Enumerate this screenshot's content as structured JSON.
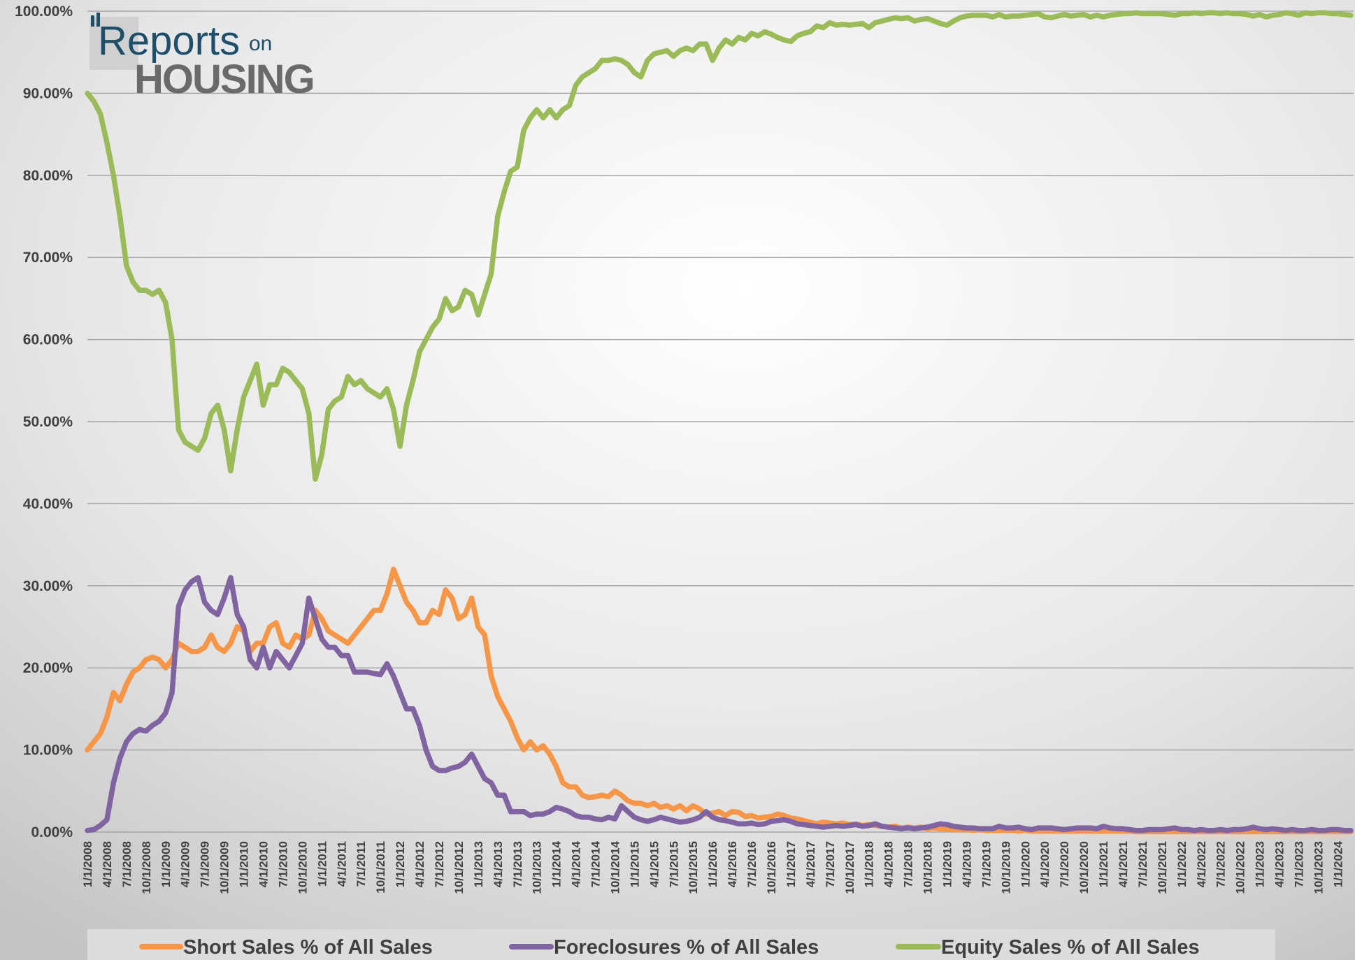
{
  "logo": {
    "word": "Reports",
    "small": "on",
    "big": "HOUSING"
  },
  "chart_data": {
    "type": "line",
    "categories": [
      "1/1/2008",
      null,
      null,
      "4/1/2008",
      null,
      null,
      "7/1/2008",
      null,
      null,
      "10/1/2008",
      null,
      null,
      "1/1/2009",
      null,
      null,
      "4/1/2009",
      null,
      null,
      "7/1/2009",
      null,
      null,
      "10/1/2009",
      null,
      null,
      "1/1/2010",
      null,
      null,
      "4/1/2010",
      null,
      null,
      "7/1/2010",
      null,
      null,
      "10/1/2010",
      null,
      null,
      "1/1/2011",
      null,
      null,
      "4/1/2011",
      null,
      null,
      "7/1/2011",
      null,
      null,
      "10/1/2011",
      null,
      null,
      "1/1/2012",
      null,
      null,
      "4/1/2012",
      null,
      null,
      "7/1/2012",
      null,
      null,
      "10/1/2012",
      null,
      null,
      "1/1/2013",
      null,
      null,
      "4/1/2013",
      null,
      null,
      "7/1/2013",
      null,
      null,
      "10/1/2013",
      null,
      null,
      "1/1/2014",
      null,
      null,
      "4/1/2014",
      null,
      null,
      "7/1/2014",
      null,
      null,
      "10/1/2014",
      null,
      null,
      "1/1/2015",
      null,
      null,
      "4/1/2015",
      null,
      null,
      "7/1/2015",
      null,
      null,
      "10/1/2015",
      null,
      null,
      "1/1/2016",
      null,
      null,
      "4/1/2016",
      null,
      null,
      "7/1/2016",
      null,
      null,
      "10/1/2016",
      null,
      null,
      "1/1/2017",
      null,
      null,
      "4/1/2017",
      null,
      null,
      "7/1/2017",
      null,
      null,
      "10/1/2017",
      null,
      null,
      "1/1/2018",
      null,
      null,
      "4/1/2018",
      null,
      null,
      "7/1/2018",
      null,
      null,
      "10/1/2018",
      null,
      null,
      "1/1/2019",
      null,
      null,
      "4/1/2019",
      null,
      null,
      "7/1/2019",
      null,
      null,
      "10/1/2019",
      null,
      null,
      "1/1/2020",
      null,
      null,
      "4/1/2020",
      null,
      null,
      "7/1/2020",
      null,
      null,
      "10/1/2020",
      null,
      null,
      "1/1/2021",
      null,
      null,
      "4/1/2021",
      null,
      null,
      "7/1/2021",
      null,
      null,
      "10/1/2021",
      null,
      null,
      "1/1/2022",
      null,
      null,
      "4/1/2022",
      null,
      null,
      "7/1/2022",
      null,
      null,
      "10/1/2022",
      null,
      null,
      "1/1/2023",
      null,
      null,
      "4/1/2023",
      null,
      null,
      "7/1/2023",
      null,
      null,
      "10/1/2023",
      null,
      null,
      "1/1/2024",
      null,
      null
    ],
    "series": [
      {
        "name": "Short Sales % of All Sales",
        "color": "#f79646",
        "values": [
          10,
          11,
          12,
          14,
          17,
          16,
          18,
          19.5,
          20,
          21,
          21.3,
          21,
          20,
          21,
          23,
          22.5,
          22,
          22,
          22.5,
          24,
          22.5,
          22,
          23,
          25,
          24.5,
          22,
          23,
          23,
          25,
          25.5,
          23,
          22.5,
          24,
          23.5,
          24,
          27,
          26,
          24.5,
          24,
          23.5,
          23,
          24,
          25,
          26,
          27,
          27,
          29,
          32,
          30,
          28,
          27,
          25.5,
          25.5,
          27,
          26.5,
          29.5,
          28.5,
          26,
          26.5,
          28.5,
          25,
          24,
          19,
          16.5,
          15,
          13.5,
          11.5,
          10,
          11,
          10,
          10.5,
          9.5,
          8,
          6,
          5.5,
          5.5,
          4.5,
          4.2,
          4.3,
          4.5,
          4.3,
          5,
          4.5,
          3.8,
          3.5,
          3.5,
          3.2,
          3.5,
          3,
          3.2,
          2.8,
          3.2,
          2.6,
          3.2,
          2.8,
          2.2,
          2.3,
          2.5,
          2,
          2.5,
          2.4,
          1.9,
          2,
          1.7,
          1.8,
          1.9,
          2.2,
          2,
          1.7,
          1.6,
          1.4,
          1.2,
          1,
          1.2,
          1.1,
          1,
          1.1,
          0.9,
          1,
          0.8,
          0.9,
          0.8,
          0.7,
          0.6,
          0.7,
          0.5,
          0.6,
          0.5,
          0.6,
          0.4,
          0.5,
          0.4,
          0.4,
          0.3,
          0.3,
          0.3,
          0.2,
          0.3,
          0.2,
          0.2,
          0.2,
          0.2,
          0.2,
          0.1,
          0.2,
          0.1,
          0.1,
          0.1,
          0.1,
          0.1,
          0.1,
          0.1,
          0.1,
          0.1,
          0.1,
          0.1,
          0.1,
          0.1,
          0.1,
          0.1,
          0.1,
          0.05,
          0.05,
          0.05,
          0.05,
          0.05,
          0.05,
          0.05,
          0.05,
          0.05,
          0.05,
          0.05,
          0.05,
          0.05,
          0.05,
          0.05,
          0.05,
          0.05,
          0.05,
          0.05,
          0.05,
          0.05,
          0.05,
          0.05,
          0.05,
          0.05,
          0.05,
          0.05,
          0.05,
          0.05,
          0.05,
          0.05,
          0.05,
          0.05,
          0.05
        ]
      },
      {
        "name": "Foreclosures % of All Sales",
        "color": "#8064a2",
        "values": [
          0.2,
          0.3,
          0.8,
          1.5,
          6,
          9,
          11,
          12,
          12.5,
          12.3,
          13,
          13.5,
          14.5,
          17,
          27.5,
          29.5,
          30.5,
          31,
          28,
          27,
          26.5,
          28.5,
          31,
          26.5,
          25,
          21,
          20,
          22.5,
          20,
          22,
          21,
          20,
          21.5,
          23,
          28.5,
          26,
          23.5,
          22.5,
          22.5,
          21.5,
          21.5,
          19.5,
          19.5,
          19.5,
          19.3,
          19.2,
          20.5,
          19,
          17,
          15,
          15,
          13,
          10,
          8,
          7.5,
          7.5,
          7.8,
          8,
          8.5,
          9.5,
          8,
          6.5,
          6,
          4.5,
          4.5,
          2.5,
          2.5,
          2.5,
          2,
          2.2,
          2.2,
          2.5,
          3,
          2.8,
          2.5,
          2,
          1.8,
          1.8,
          1.6,
          1.5,
          1.8,
          1.6,
          3.2,
          2.5,
          1.8,
          1.5,
          1.3,
          1.5,
          1.8,
          1.6,
          1.4,
          1.2,
          1.3,
          1.5,
          1.8,
          2.5,
          1.8,
          1.5,
          1.4,
          1.2,
          1,
          1,
          1.1,
          0.9,
          1,
          1.3,
          1.4,
          1.5,
          1.3,
          1,
          0.9,
          0.8,
          0.7,
          0.6,
          0.7,
          0.8,
          0.7,
          0.8,
          0.9,
          0.7,
          0.8,
          1,
          0.7,
          0.6,
          0.5,
          0.4,
          0.5,
          0.4,
          0.5,
          0.6,
          0.8,
          1,
          0.9,
          0.7,
          0.6,
          0.5,
          0.5,
          0.4,
          0.4,
          0.4,
          0.7,
          0.5,
          0.5,
          0.6,
          0.4,
          0.3,
          0.5,
          0.5,
          0.5,
          0.4,
          0.3,
          0.4,
          0.5,
          0.5,
          0.5,
          0.4,
          0.7,
          0.5,
          0.4,
          0.4,
          0.3,
          0.2,
          0.2,
          0.3,
          0.3,
          0.3,
          0.4,
          0.5,
          0.3,
          0.3,
          0.2,
          0.3,
          0.2,
          0.2,
          0.3,
          0.2,
          0.3,
          0.3,
          0.4,
          0.6,
          0.4,
          0.3,
          0.4,
          0.3,
          0.2,
          0.3,
          0.2,
          0.2,
          0.3,
          0.2,
          0.2,
          0.3,
          0.3,
          0.2,
          0.2
        ]
      },
      {
        "name": "Equity Sales % of All Sales",
        "color": "#9bbb59",
        "values": [
          90,
          89,
          87.5,
          84,
          80,
          75,
          69,
          67,
          66,
          66,
          65.5,
          66,
          64.5,
          60,
          49,
          47.5,
          47,
          46.5,
          48,
          51,
          52,
          49,
          44,
          49,
          53,
          55,
          57,
          52,
          54.5,
          54.5,
          56.5,
          56,
          55,
          54,
          51,
          43,
          46,
          51.5,
          52.5,
          53,
          55.5,
          54.5,
          55,
          54,
          53.5,
          53,
          54,
          51.5,
          47,
          52,
          55,
          58.5,
          60,
          61.5,
          62.5,
          65,
          63.5,
          64,
          66,
          65.5,
          63,
          65.5,
          68,
          75,
          78,
          80.5,
          81,
          85.5,
          87,
          88,
          87,
          88,
          87,
          88,
          88.5,
          91,
          92,
          92.5,
          93,
          94,
          94,
          94.2,
          94,
          93.5,
          92.5,
          92,
          94,
          94.8,
          95,
          95.2,
          94.5,
          95.2,
          95.5,
          95.2,
          96,
          96,
          94,
          95.5,
          96.5,
          96,
          96.8,
          96.5,
          97.3,
          97,
          97.5,
          97.2,
          96.8,
          96.5,
          96.3,
          97,
          97.3,
          97.5,
          98.2,
          98,
          98.6,
          98.3,
          98.4,
          98.3,
          98.4,
          98.5,
          98,
          98.6,
          98.8,
          99,
          99.2,
          99.1,
          99.2,
          98.8,
          99,
          99.1,
          98.8,
          98.5,
          98.3,
          98.8,
          99.2,
          99.4,
          99.5,
          99.5,
          99.5,
          99.3,
          99.6,
          99.3,
          99.4,
          99.4,
          99.5,
          99.6,
          99.7,
          99.3,
          99.2,
          99.4,
          99.6,
          99.4,
          99.5,
          99.6,
          99.3,
          99.5,
          99.3,
          99.5,
          99.6,
          99.7,
          99.7,
          99.8,
          99.7,
          99.7,
          99.7,
          99.7,
          99.6,
          99.5,
          99.7,
          99.7,
          99.8,
          99.7,
          99.8,
          99.8,
          99.7,
          99.8,
          99.7,
          99.7,
          99.6,
          99.4,
          99.6,
          99.3,
          99.5,
          99.6,
          99.8,
          99.7,
          99.5,
          99.8,
          99.7,
          99.8,
          99.8,
          99.7,
          99.7,
          99.6,
          99.5
        ]
      }
    ],
    "ylim": [
      0,
      100
    ],
    "yticks": [
      {
        "value": 0,
        "label": "0.00%"
      },
      {
        "value": 10,
        "label": "10.00%"
      },
      {
        "value": 20,
        "label": "20.00%"
      },
      {
        "value": 30,
        "label": "30.00%"
      },
      {
        "value": 40,
        "label": "40.00%"
      },
      {
        "value": 50,
        "label": "50.00%"
      },
      {
        "value": 60,
        "label": "60.00%"
      },
      {
        "value": 70,
        "label": "70.00%"
      },
      {
        "value": 80,
        "label": "80.00%"
      },
      {
        "value": 90,
        "label": "90.00%"
      },
      {
        "value": 100,
        "label": "100.00%"
      }
    ],
    "grid": true,
    "legend": "bottom"
  }
}
